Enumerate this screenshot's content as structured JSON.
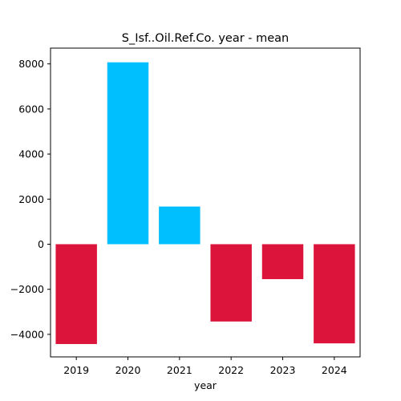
{
  "chart_data": {
    "type": "bar",
    "title": "S_Isf..Oil.Ref.Co. year - mean",
    "xlabel": "year",
    "ylabel": "",
    "categories": [
      "2019",
      "2020",
      "2021",
      "2022",
      "2023",
      "2024"
    ],
    "values": [
      -4430,
      8070,
      1670,
      -3430,
      -1550,
      -4400
    ],
    "colors": [
      "#dc143c",
      "#00bfff",
      "#00bfff",
      "#dc143c",
      "#dc143c",
      "#dc143c"
    ],
    "positive_color": "#00bfff",
    "negative_color": "#dc143c",
    "ylim": [
      -5000,
      8700
    ],
    "yticks": [
      -4000,
      -2000,
      0,
      2000,
      4000,
      6000,
      8000
    ],
    "ytick_labels": [
      "−4000",
      "−2000",
      "0",
      "2000",
      "4000",
      "6000",
      "8000"
    ],
    "grid": false,
    "legend": "none"
  }
}
